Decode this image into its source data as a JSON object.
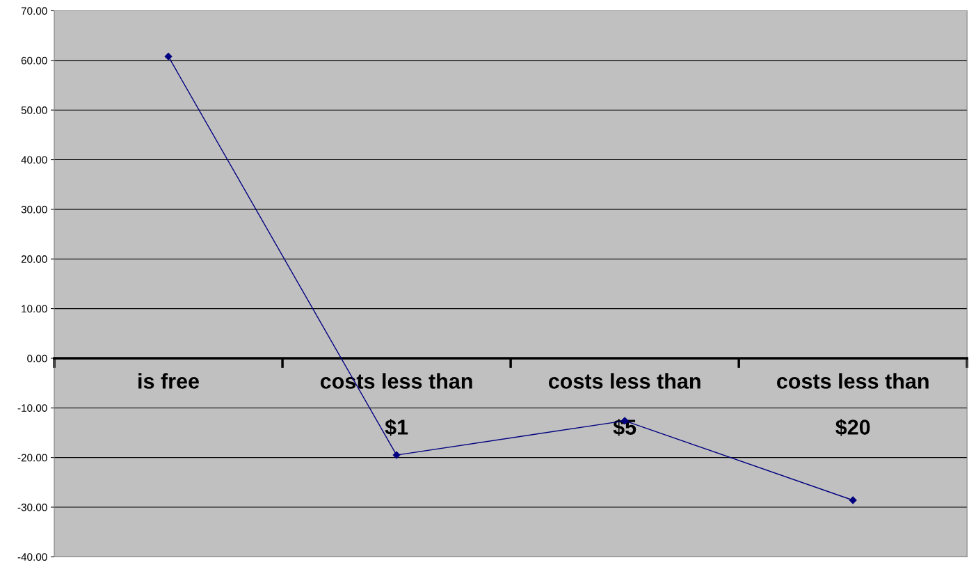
{
  "chart_data": {
    "type": "line",
    "categories": [
      "is free",
      "costs less than $1",
      "costs less than $5",
      "costs less than $20"
    ],
    "series": [
      {
        "color": "#000080",
        "values": [
          60.8,
          -19.5,
          -12.6,
          -28.6
        ]
      }
    ],
    "ylim": [
      -40,
      70
    ],
    "yticks": [
      {
        "value": -40,
        "label": "-40.00"
      },
      {
        "value": -30,
        "label": "-30.00"
      },
      {
        "value": -20,
        "label": "-20.00"
      },
      {
        "value": -10,
        "label": "-10.00"
      },
      {
        "value": 0,
        "label": "0.00"
      },
      {
        "value": 10,
        "label": "10.00"
      },
      {
        "value": 20,
        "label": "20.00"
      },
      {
        "value": 30,
        "label": "30.00"
      },
      {
        "value": 40,
        "label": "40.00"
      },
      {
        "value": 50,
        "label": "50.00"
      },
      {
        "value": 60,
        "label": "60.00"
      },
      {
        "value": 70,
        "label": "70.00"
      }
    ],
    "grid": "y",
    "legend": false,
    "marker": "diamond",
    "line_style": "solid"
  }
}
